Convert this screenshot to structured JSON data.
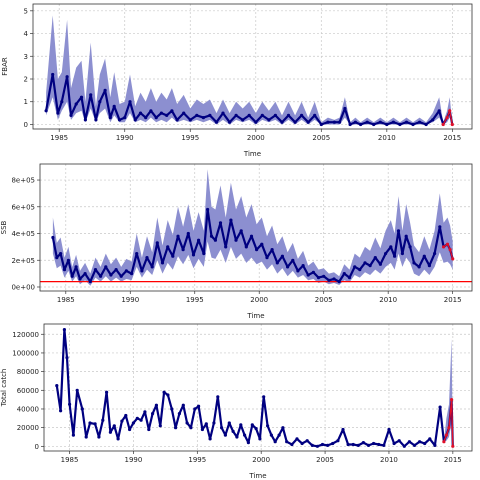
{
  "colors": {
    "band": "#8c8fd0",
    "line": "#000080",
    "forecast": "#e0102a",
    "refline": "#ff0000",
    "grid": "#c8c8c8",
    "frame": "#333333"
  },
  "chart_data": [
    {
      "type": "line",
      "id": "fbar",
      "xlabel": "Time",
      "ylabel": "FBAR",
      "xlim": [
        1983.0,
        2016.5
      ],
      "ylim": [
        -0.2,
        5.3
      ],
      "xticks": [
        1985,
        1990,
        1995,
        2000,
        2005,
        2010,
        2015
      ],
      "xtick_labels": [
        "1985",
        "1990",
        "1995",
        "2000",
        "2005",
        "2010",
        "2015"
      ],
      "yticks": [
        0,
        1,
        2,
        3,
        4,
        5
      ],
      "ytick_labels": [
        "0",
        "1",
        "2",
        "3",
        "4",
        "5"
      ],
      "grid": true,
      "x": [
        1984.0,
        1984.5,
        1984.9,
        1985.2,
        1985.6,
        1985.9,
        1986.3,
        1986.7,
        1987.0,
        1987.4,
        1987.8,
        1988.1,
        1988.5,
        1988.9,
        1989.2,
        1989.6,
        1990.0,
        1990.4,
        1990.8,
        1991.2,
        1991.6,
        1992.0,
        1992.4,
        1992.8,
        1993.2,
        1993.6,
        1994.0,
        1994.5,
        1995.0,
        1995.5,
        1996.0,
        1996.5,
        1997.0,
        1997.5,
        1998.0,
        1998.5,
        1999.0,
        1999.5,
        2000.0,
        2000.5,
        2001.0,
        2001.5,
        2002.0,
        2002.5,
        2003.0,
        2003.5,
        2004.0,
        2004.5,
        2005.0,
        2005.5,
        2006.0,
        2006.4,
        2006.8,
        2007.2,
        2007.6,
        2008.0,
        2008.5,
        2009.0,
        2009.5,
        2010.0,
        2010.5,
        2011.0,
        2011.5,
        2012.0,
        2012.5,
        2013.0,
        2013.5,
        2014.0,
        2014.3,
        2014.6,
        2014.8,
        2015.0
      ],
      "y": [
        0.6,
        2.2,
        0.5,
        1.0,
        2.1,
        0.4,
        0.9,
        1.2,
        0.2,
        1.3,
        0.2,
        1.0,
        1.5,
        0.3,
        0.8,
        0.2,
        0.3,
        1.0,
        0.2,
        0.5,
        0.3,
        0.6,
        0.3,
        0.5,
        0.4,
        0.6,
        0.2,
        0.5,
        0.2,
        0.4,
        0.3,
        0.4,
        0.1,
        0.5,
        0.1,
        0.4,
        0.2,
        0.4,
        0.1,
        0.4,
        0.2,
        0.4,
        0.1,
        0.4,
        0.1,
        0.4,
        0.1,
        0.4,
        0.0,
        0.1,
        0.1,
        0.1,
        0.7,
        0.0,
        0.1,
        0.0,
        0.1,
        0.0,
        0.1,
        0.0,
        0.1,
        0.0,
        0.1,
        0.0,
        0.1,
        0.0,
        0.2,
        0.6,
        0.0,
        0.3,
        0.6,
        0.0
      ],
      "lower": [
        0.4,
        1.2,
        0.2,
        0.6,
        1.0,
        0.2,
        0.5,
        0.6,
        0.1,
        0.7,
        0.1,
        0.5,
        0.7,
        0.1,
        0.4,
        0.1,
        0.1,
        0.5,
        0.1,
        0.2,
        0.1,
        0.3,
        0.1,
        0.2,
        0.1,
        0.3,
        0.1,
        0.2,
        0.1,
        0.2,
        0.1,
        0.2,
        0.0,
        0.2,
        0.0,
        0.2,
        0.1,
        0.2,
        0.0,
        0.2,
        0.1,
        0.2,
        0.0,
        0.2,
        0.0,
        0.2,
        0.0,
        0.2,
        0.0,
        0.0,
        0.0,
        0.0,
        0.3,
        0.0,
        0.0,
        0.0,
        0.0,
        0.0,
        0.0,
        0.0,
        0.0,
        0.0,
        0.0,
        0.0,
        0.0,
        0.0,
        0.1,
        0.3,
        0.0,
        0.1,
        0.3,
        0.0
      ],
      "upper": [
        1.4,
        4.8,
        2.0,
        2.3,
        4.6,
        1.6,
        2.5,
        2.8,
        1.0,
        3.6,
        0.8,
        2.2,
        2.9,
        1.2,
        2.3,
        0.9,
        1.0,
        2.2,
        0.8,
        1.4,
        1.0,
        1.6,
        1.0,
        1.4,
        1.1,
        1.6,
        0.9,
        1.3,
        0.7,
        1.1,
        0.9,
        1.1,
        0.5,
        1.1,
        0.5,
        1.0,
        0.7,
        1.0,
        0.5,
        1.0,
        0.6,
        1.0,
        0.4,
        1.0,
        0.4,
        1.0,
        0.3,
        1.0,
        0.1,
        0.3,
        0.2,
        0.3,
        1.2,
        0.1,
        0.3,
        0.1,
        0.3,
        0.1,
        0.3,
        0.1,
        0.3,
        0.1,
        0.3,
        0.1,
        0.3,
        0.1,
        0.5,
        1.2,
        0.1,
        0.6,
        1.2,
        0.1
      ],
      "forecast_from": 2014.3
    },
    {
      "type": "line",
      "id": "ssb",
      "xlabel": "Time",
      "ylabel": "SSB",
      "xlim": [
        1983.0,
        2016.5
      ],
      "ylim": [
        -30000,
        920000
      ],
      "xticks": [
        1985,
        1990,
        1995,
        2000,
        2005,
        2010,
        2015
      ],
      "xtick_labels": [
        "1985",
        "1990",
        "1995",
        "2000",
        "2005",
        "2010",
        "2015"
      ],
      "yticks": [
        0,
        200000,
        400000,
        600000,
        800000
      ],
      "ytick_labels": [
        "0e+00",
        "2e+05",
        "4e+05",
        "6e+05",
        "8e+05"
      ],
      "grid": true,
      "reference_line": 40000,
      "x": [
        1984.0,
        1984.3,
        1984.6,
        1984.9,
        1985.2,
        1985.5,
        1985.8,
        1986.1,
        1986.5,
        1986.9,
        1987.3,
        1987.7,
        1988.1,
        1988.5,
        1988.9,
        1989.3,
        1989.7,
        1990.1,
        1990.5,
        1990.9,
        1991.3,
        1991.7,
        1992.1,
        1992.5,
        1992.9,
        1993.3,
        1993.7,
        1994.1,
        1994.5,
        1994.9,
        1995.3,
        1995.7,
        1996.0,
        1996.3,
        1996.6,
        1997.0,
        1997.4,
        1997.8,
        1998.2,
        1998.6,
        1999.0,
        1999.4,
        1999.8,
        2000.2,
        2000.6,
        2001.0,
        2001.4,
        2001.8,
        2002.2,
        2002.6,
        2003.0,
        2003.4,
        2003.8,
        2004.2,
        2004.6,
        2005.0,
        2005.4,
        2005.8,
        2006.2,
        2006.6,
        2007.0,
        2007.4,
        2007.8,
        2008.2,
        2008.6,
        2009.0,
        2009.4,
        2009.8,
        2010.2,
        2010.5,
        2010.8,
        2011.1,
        2011.4,
        2011.7,
        2012.0,
        2012.4,
        2012.8,
        2013.2,
        2013.6,
        2014.0,
        2014.3,
        2014.6,
        2014.8,
        2015.0
      ],
      "y": [
        370000,
        220000,
        250000,
        130000,
        200000,
        80000,
        150000,
        60000,
        100000,
        40000,
        130000,
        80000,
        150000,
        90000,
        130000,
        80000,
        120000,
        100000,
        250000,
        120000,
        220000,
        150000,
        330000,
        180000,
        300000,
        230000,
        380000,
        280000,
        400000,
        240000,
        350000,
        250000,
        580000,
        380000,
        350000,
        480000,
        300000,
        500000,
        350000,
        420000,
        300000,
        380000,
        280000,
        320000,
        220000,
        280000,
        180000,
        230000,
        150000,
        200000,
        120000,
        160000,
        90000,
        110000,
        70000,
        80000,
        50000,
        60000,
        40000,
        100000,
        70000,
        150000,
        130000,
        180000,
        160000,
        220000,
        170000,
        250000,
        300000,
        230000,
        420000,
        250000,
        380000,
        300000,
        180000,
        150000,
        230000,
        160000,
        250000,
        450000,
        300000,
        320000,
        280000,
        210000
      ],
      "lower": [
        250000,
        140000,
        160000,
        70000,
        120000,
        40000,
        80000,
        20000,
        50000,
        10000,
        70000,
        40000,
        80000,
        40000,
        70000,
        40000,
        60000,
        50000,
        150000,
        70000,
        130000,
        90000,
        200000,
        100000,
        180000,
        130000,
        230000,
        170000,
        240000,
        140000,
        210000,
        150000,
        340000,
        220000,
        210000,
        280000,
        180000,
        300000,
        210000,
        250000,
        180000,
        220000,
        170000,
        190000,
        130000,
        170000,
        100000,
        140000,
        80000,
        120000,
        70000,
        90000,
        50000,
        60000,
        30000,
        40000,
        20000,
        30000,
        15000,
        50000,
        35000,
        90000,
        70000,
        110000,
        90000,
        130000,
        100000,
        150000,
        180000,
        130000,
        250000,
        150000,
        220000,
        180000,
        100000,
        80000,
        130000,
        90000,
        150000,
        260000,
        180000,
        190000,
        170000,
        130000
      ],
      "upper": [
        520000,
        330000,
        370000,
        220000,
        300000,
        150000,
        240000,
        120000,
        180000,
        100000,
        220000,
        150000,
        250000,
        170000,
        220000,
        150000,
        210000,
        190000,
        400000,
        220000,
        380000,
        260000,
        520000,
        310000,
        500000,
        390000,
        600000,
        450000,
        620000,
        420000,
        560000,
        420000,
        880000,
        600000,
        580000,
        760000,
        520000,
        780000,
        580000,
        680000,
        520000,
        620000,
        470000,
        520000,
        380000,
        460000,
        320000,
        380000,
        260000,
        330000,
        210000,
        270000,
        160000,
        190000,
        130000,
        140000,
        100000,
        110000,
        80000,
        170000,
        130000,
        250000,
        220000,
        300000,
        270000,
        370000,
        290000,
        420000,
        500000,
        400000,
        680000,
        420000,
        620000,
        480000,
        310000,
        260000,
        380000,
        280000,
        420000,
        700000,
        480000,
        520000,
        460000,
        340000
      ],
      "forecast_from": 2014.3
    },
    {
      "type": "line",
      "id": "catch",
      "xlabel": "Time",
      "ylabel": "Total catch",
      "xlim": [
        1983.0,
        2016.5
      ],
      "ylim": [
        -5000,
        131000
      ],
      "xticks": [
        1985,
        1990,
        1995,
        2000,
        2005,
        2010,
        2015
      ],
      "xtick_labels": [
        "1985",
        "1990",
        "1995",
        "2000",
        "2005",
        "2010",
        "2015"
      ],
      "yticks": [
        0,
        20000,
        40000,
        60000,
        80000,
        100000,
        120000
      ],
      "ytick_labels": [
        "0",
        "20000",
        "40000",
        "60000",
        "80000",
        "100000",
        "120000"
      ],
      "grid": true,
      "x": [
        1984.0,
        1984.3,
        1984.6,
        1984.8,
        1985.0,
        1985.3,
        1985.6,
        1986.0,
        1986.3,
        1986.6,
        1987.0,
        1987.3,
        1987.6,
        1987.9,
        1988.2,
        1988.5,
        1988.8,
        1989.1,
        1989.4,
        1989.7,
        1990.0,
        1990.3,
        1990.6,
        1990.9,
        1991.2,
        1991.5,
        1991.8,
        1992.1,
        1992.4,
        1992.7,
        1993.0,
        1993.3,
        1993.6,
        1993.9,
        1994.2,
        1994.5,
        1994.8,
        1995.1,
        1995.4,
        1995.7,
        1996.0,
        1996.3,
        1996.6,
        1996.9,
        1997.2,
        1997.5,
        1997.8,
        1998.1,
        1998.4,
        1998.7,
        1999.0,
        1999.3,
        1999.6,
        1999.9,
        2000.2,
        2000.5,
        2000.8,
        2001.1,
        2001.4,
        2001.7,
        2002.0,
        2002.4,
        2002.8,
        2003.2,
        2003.6,
        2004.0,
        2004.4,
        2004.8,
        2005.2,
        2005.6,
        2006.0,
        2006.4,
        2006.8,
        2007.2,
        2007.6,
        2008.0,
        2008.4,
        2008.8,
        2009.2,
        2009.6,
        2010.0,
        2010.4,
        2010.8,
        2011.2,
        2011.6,
        2012.0,
        2012.4,
        2012.8,
        2013.2,
        2013.6,
        2014.0,
        2014.3,
        2014.5,
        2014.7,
        2014.9,
        2015.0
      ],
      "y": [
        65000,
        38000,
        125000,
        95000,
        45000,
        12000,
        60000,
        40000,
        10000,
        25000,
        24000,
        10000,
        28000,
        58000,
        15000,
        22000,
        8000,
        27000,
        33000,
        18000,
        25000,
        30000,
        28000,
        37000,
        18000,
        35000,
        44000,
        22000,
        58000,
        55000,
        40000,
        20000,
        35000,
        44000,
        25000,
        20000,
        40000,
        43000,
        18000,
        24000,
        8000,
        25000,
        53000,
        20000,
        12000,
        25000,
        16000,
        10000,
        23000,
        12000,
        4000,
        23000,
        19000,
        8000,
        53000,
        22000,
        12000,
        5000,
        12000,
        20000,
        5000,
        2000,
        8000,
        3000,
        6000,
        1000,
        0,
        2000,
        1000,
        3000,
        6000,
        18000,
        2000,
        2000,
        1000,
        4000,
        1000,
        3000,
        2000,
        1000,
        18000,
        3000,
        6000,
        0,
        5000,
        1000,
        5000,
        3000,
        8000,
        1000,
        42000,
        5000,
        12000,
        20000,
        50000,
        0
      ],
      "lower": [
        65000,
        38000,
        125000,
        95000,
        45000,
        12000,
        60000,
        40000,
        10000,
        25000,
        24000,
        10000,
        28000,
        58000,
        15000,
        22000,
        8000,
        27000,
        33000,
        18000,
        25000,
        30000,
        28000,
        37000,
        18000,
        35000,
        44000,
        22000,
        58000,
        55000,
        40000,
        20000,
        35000,
        44000,
        25000,
        20000,
        40000,
        43000,
        18000,
        24000,
        8000,
        25000,
        53000,
        20000,
        12000,
        25000,
        16000,
        10000,
        23000,
        12000,
        4000,
        23000,
        19000,
        8000,
        53000,
        22000,
        12000,
        5000,
        12000,
        20000,
        5000,
        2000,
        8000,
        3000,
        6000,
        1000,
        0,
        2000,
        1000,
        3000,
        6000,
        18000,
        2000,
        2000,
        1000,
        4000,
        1000,
        3000,
        2000,
        1000,
        18000,
        3000,
        6000,
        0,
        5000,
        1000,
        5000,
        3000,
        8000,
        1000,
        42000,
        5000,
        6000,
        10000,
        25000,
        0
      ],
      "upper": [
        65000,
        38000,
        125000,
        95000,
        45000,
        12000,
        60000,
        40000,
        10000,
        25000,
        24000,
        10000,
        28000,
        58000,
        15000,
        22000,
        8000,
        27000,
        33000,
        18000,
        25000,
        30000,
        28000,
        37000,
        18000,
        35000,
        44000,
        22000,
        58000,
        55000,
        40000,
        20000,
        35000,
        44000,
        25000,
        20000,
        40000,
        43000,
        18000,
        24000,
        8000,
        25000,
        53000,
        20000,
        12000,
        25000,
        16000,
        10000,
        23000,
        12000,
        4000,
        23000,
        19000,
        8000,
        53000,
        22000,
        12000,
        5000,
        12000,
        20000,
        5000,
        2000,
        8000,
        3000,
        6000,
        1000,
        0,
        2000,
        1000,
        3000,
        6000,
        18000,
        2000,
        2000,
        1000,
        4000,
        1000,
        3000,
        2000,
        1000,
        18000,
        3000,
        6000,
        0,
        5000,
        1000,
        5000,
        3000,
        8000,
        1000,
        42000,
        5000,
        30000,
        45000,
        115000,
        0
      ],
      "forecast_from": 2014.3
    }
  ]
}
